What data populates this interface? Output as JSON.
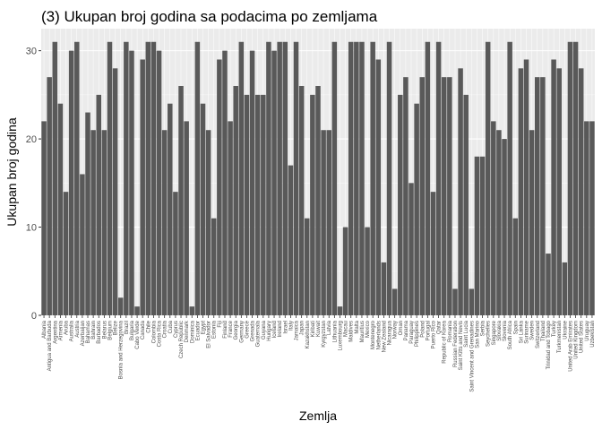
{
  "chart_data": {
    "type": "bar",
    "title": "(3) Ukupan broj godina sa podacima po zemljama",
    "xlabel": "Zemlja",
    "ylabel": "Ukupan broj godina",
    "ylim": [
      0,
      32.5
    ],
    "yticks": [
      0,
      10,
      20,
      30
    ],
    "grid": true,
    "legend": "none",
    "bar_color": "#595959",
    "panel_color": "#ebebeb",
    "categories": [
      "Albania",
      "Antigua and Barbuda",
      "Argentina",
      "Armenia",
      "Aruba",
      "Australia",
      "Austria",
      "Azerbaijan",
      "Bahamas",
      "Bahrain",
      "Barbados",
      "Belarus",
      "Belgium",
      "Belize",
      "Bosnia and Herzegovina",
      "Brazil",
      "Bulgaria",
      "Cabo Verde",
      "Canada",
      "Chile",
      "Colombia",
      "Costa Rica",
      "Croatia",
      "Cuba",
      "Cyprus",
      "Czech Republic",
      "Denmark",
      "Dominica",
      "Ecuador",
      "Egypt",
      "El Salvador",
      "Estonia",
      "Fiji",
      "Finland",
      "France",
      "Georgia",
      "Germany",
      "Greece",
      "Grenada",
      "Guatemala",
      "Guyana",
      "Hungary",
      "Iceland",
      "Ireland",
      "Israel",
      "Italy",
      "Jamaica",
      "Japan",
      "Kazakhstan",
      "Kiribati",
      "Kuwait",
      "Kyrgyzstan",
      "Latvia",
      "Lithuania",
      "Luxembourg",
      "Macau",
      "Maldives",
      "Malta",
      "Mauritius",
      "Mexico",
      "Montenegro",
      "Netherlands",
      "New Zealand",
      "Nicaragua",
      "Norway",
      "Oman",
      "Panama",
      "Paraguay",
      "Philippines",
      "Poland",
      "Portugal",
      "Puerto Rico",
      "Qatar",
      "Republic of Korea",
      "Romania",
      "Russian Federation",
      "Saint Kitts and Nevis",
      "Saint Lucia",
      "Saint Vincent and Grenadines",
      "San Marino",
      "Serbia",
      "Seychelles",
      "Singapore",
      "Slovakia",
      "Slovenia",
      "South Africa",
      "Spain",
      "Sri Lanka",
      "Suriname",
      "Sweden",
      "Switzerland",
      "Thailand",
      "Trinidad and Tobago",
      "Turkey",
      "Turkmenistan",
      "Ukraine",
      "United Arab Emirates",
      "United Kingdom",
      "United States",
      "Uruguay",
      "Uzbekistan"
    ],
    "values": [
      22,
      27,
      31,
      24,
      14,
      30,
      31,
      16,
      23,
      21,
      25,
      21,
      31,
      28,
      2,
      31,
      30,
      1,
      29,
      31,
      31,
      30,
      21,
      24,
      14,
      26,
      22,
      1,
      31,
      24,
      21,
      11,
      29,
      30,
      22,
      26,
      31,
      25,
      30,
      25,
      25,
      31,
      30,
      31,
      31,
      17,
      31,
      26,
      11,
      25,
      26,
      21,
      21,
      31,
      1,
      10,
      31,
      31,
      31,
      10,
      31,
      29,
      6,
      31,
      3,
      25,
      27,
      15,
      24,
      27,
      31,
      14,
      31,
      27,
      27,
      3,
      28,
      25,
      3,
      18,
      18,
      31,
      22,
      21,
      20,
      31,
      11,
      28,
      29,
      21,
      27,
      27,
      7,
      29,
      28,
      6,
      31,
      31,
      28,
      22,
      22
    ]
  }
}
